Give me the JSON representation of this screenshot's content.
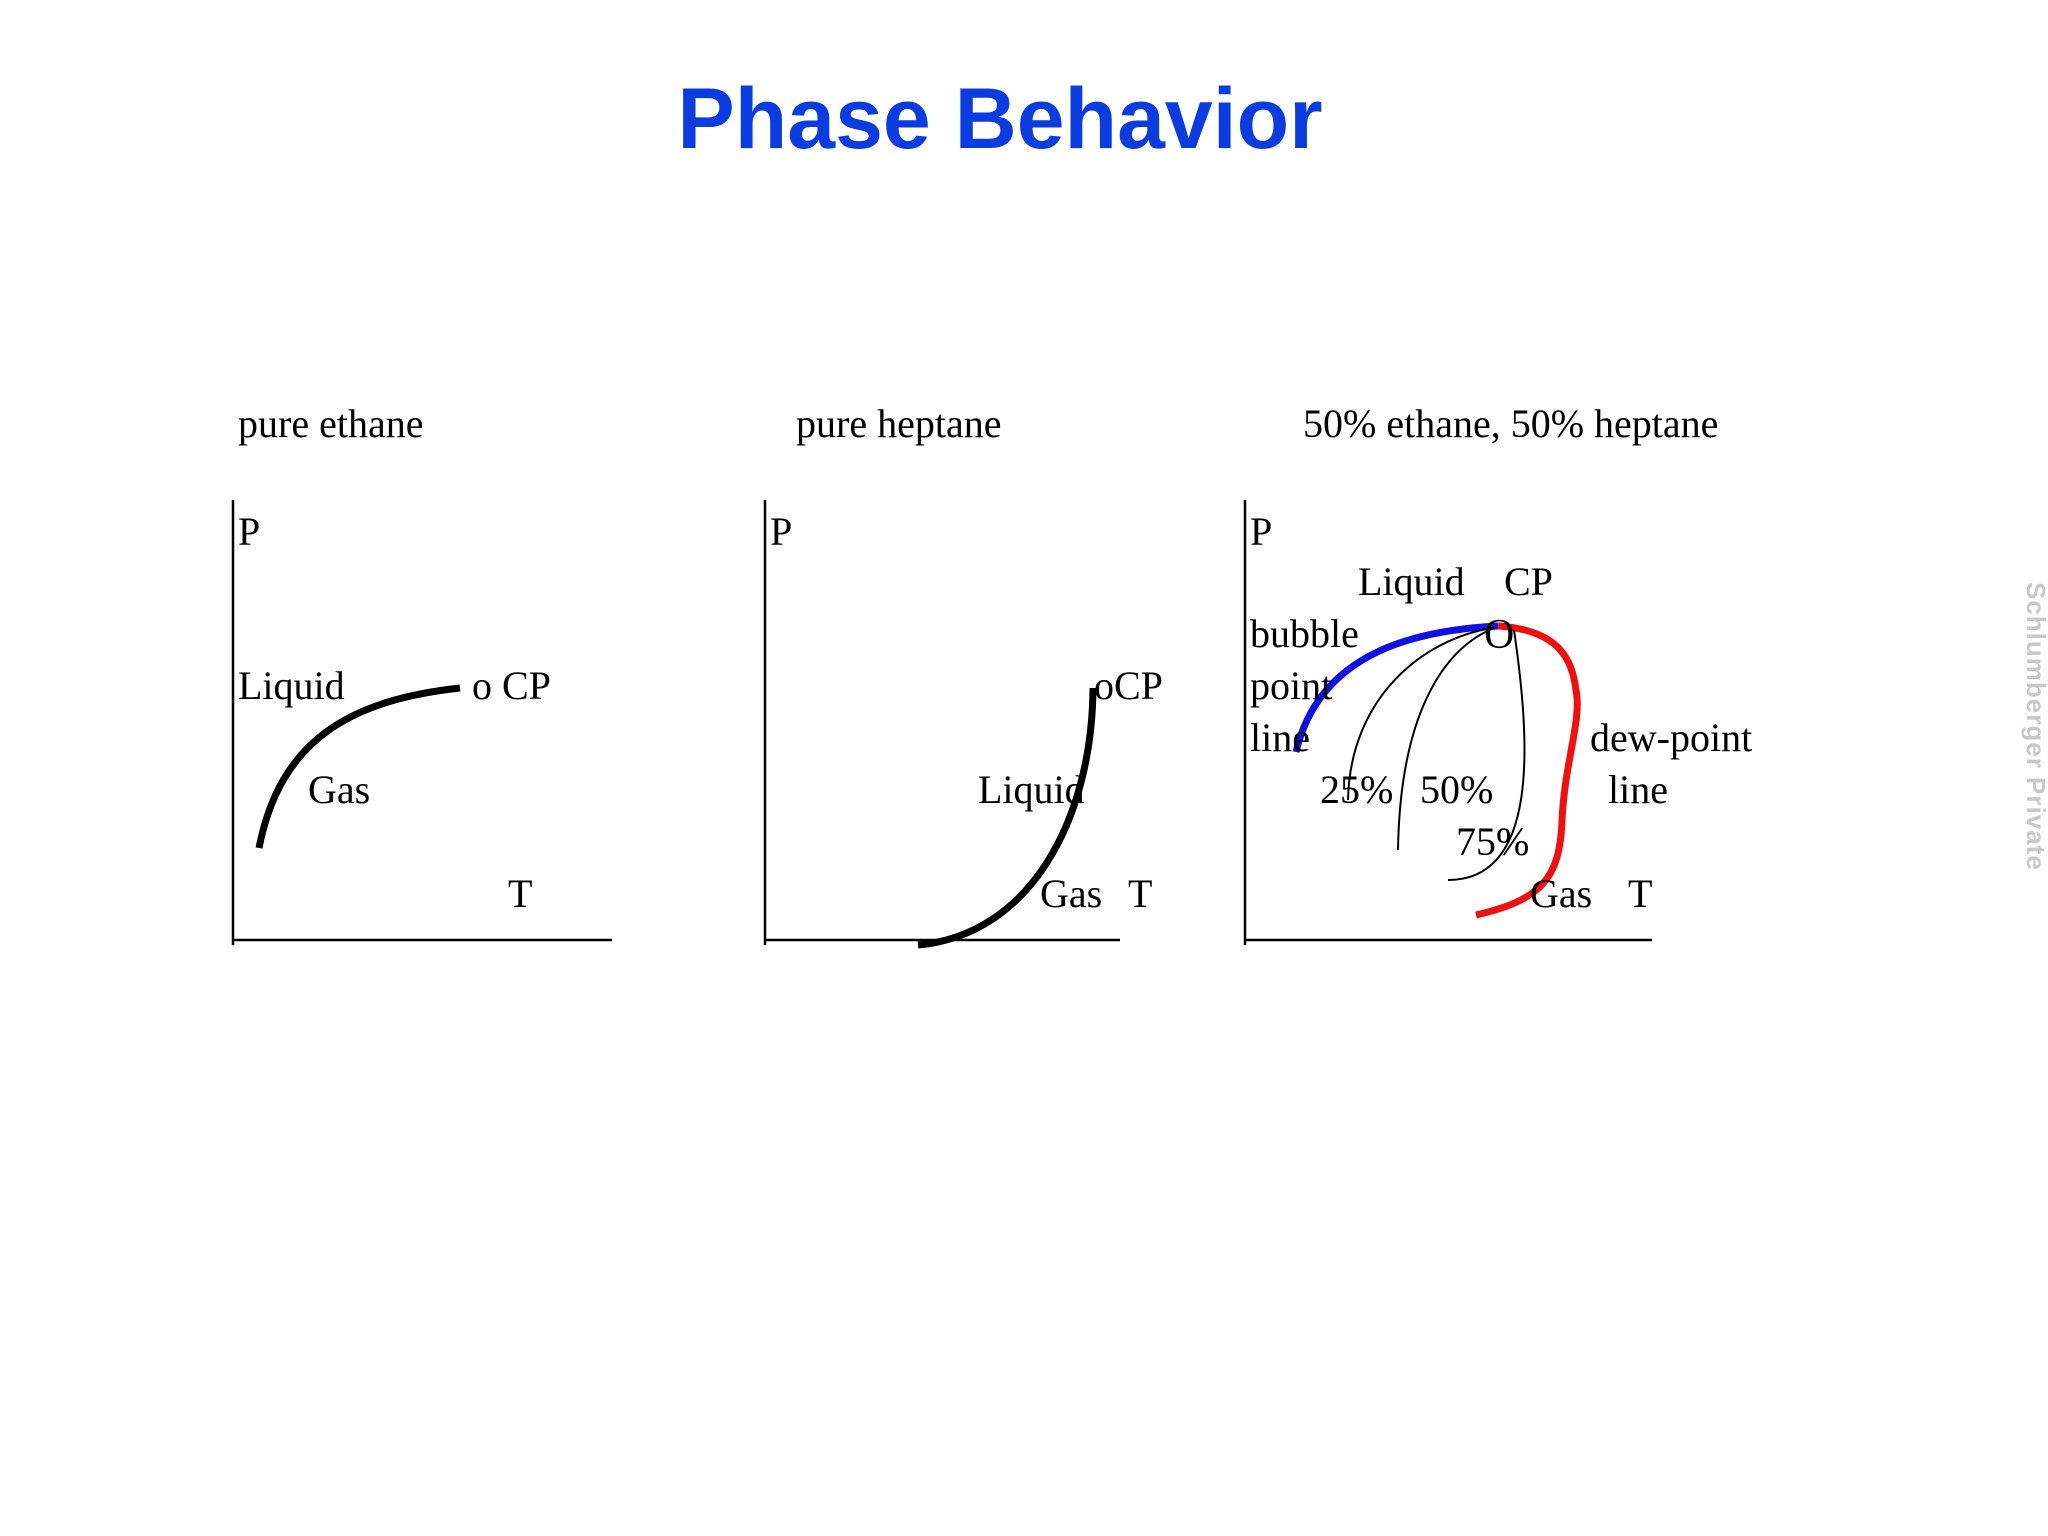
{
  "slide": {
    "title": "Phase Behavior",
    "watermark": "Schlumberger Private"
  },
  "colors": {
    "title": "#0b3ce0",
    "bubble_point_line": "#1010e0",
    "dew_point_line": "#ee1111",
    "curve": "#000000"
  },
  "diagrams": [
    {
      "heading": "pure ethane",
      "labels": {
        "p_axis": "P",
        "t_axis": "T",
        "liquid": "Liquid",
        "gas": "Gas",
        "cp": "o CP"
      }
    },
    {
      "heading": "pure heptane",
      "labels": {
        "p_axis": "P",
        "t_axis": "T",
        "liquid": "Liquid",
        "gas": "Gas",
        "cp": "oCP"
      }
    },
    {
      "heading": "50% ethane, 50% heptane",
      "labels": {
        "p_axis": "P",
        "t_axis": "T",
        "liquid": "Liquid",
        "gas": "Gas",
        "cp": "CP",
        "cp_marker": "O",
        "bubble_line": [
          "bubble",
          "point",
          "line"
        ],
        "dew_line": [
          "dew-point",
          "line"
        ],
        "quality_25": "25%",
        "quality_50": "50%",
        "quality_75": "75%"
      }
    }
  ]
}
